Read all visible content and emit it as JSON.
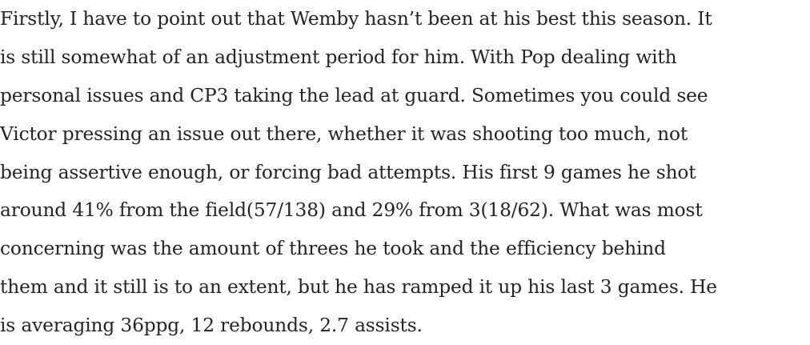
{
  "article": {
    "paragraph_lines": [
      "Firstly, I have to point out that Wemby hasn’t been at his best this season. It",
      "is still somewhat of an adjustment period for him. With Pop dealing with",
      "personal issues and CP3 taking the lead at guard. Sometimes you could see",
      "Victor pressing an issue out there, whether it was shooting too much, not",
      "being assertive enough, or forcing bad attempts. His first 9 games he shot",
      "around 41% from the field(57/138) and 29% from 3(18/62). What was most",
      "concerning was the amount of threes he took and the efficiency behind",
      "them and it still is to an extent, but he has ramped it up his last 3 games. He",
      "is averaging 36ppg, 12 rebounds, 2.7 assists."
    ]
  }
}
